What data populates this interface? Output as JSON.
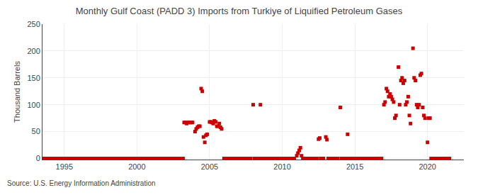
{
  "chart_data": {
    "type": "scatter",
    "title": "Monthly Gulf Coast (PADD 3) Imports from Turkiye of Liquified Petroleum Gases",
    "ylabel": "Thousand Barrels",
    "annotations": [
      "Source: U.S. Energy Information Administration"
    ],
    "color": "#cc0000",
    "marker": "square",
    "grid": true,
    "xlim": [
      1993.5,
      2022.5
    ],
    "ylim": [
      -2,
      250
    ],
    "xticks": [
      1995,
      2000,
      2005,
      2010,
      2015,
      2020
    ],
    "yticks": [
      0,
      50,
      100,
      150,
      200,
      250
    ],
    "x": [
      1993.5,
      1993.6,
      1993.7,
      1993.8,
      1993.9,
      1994.0,
      1994.1,
      1994.2,
      1994.3,
      1994.4,
      1994.5,
      1994.6,
      1994.7,
      1994.8,
      1994.9,
      1995.0,
      1995.1,
      1995.2,
      1995.3,
      1995.4,
      1995.5,
      1995.6,
      1995.7,
      1995.8,
      1995.9,
      1996.0,
      1996.1,
      1996.2,
      1996.3,
      1996.4,
      1996.5,
      1996.6,
      1996.7,
      1996.8,
      1996.9,
      1997.0,
      1997.1,
      1997.2,
      1997.3,
      1997.4,
      1997.5,
      1997.6,
      1997.7,
      1997.8,
      1997.9,
      1998.0,
      1998.1,
      1998.2,
      1998.3,
      1998.4,
      1998.5,
      1998.6,
      1998.7,
      1998.8,
      1998.9,
      1999.0,
      1999.1,
      1999.2,
      1999.3,
      1999.4,
      1999.5,
      1999.6,
      1999.7,
      1999.8,
      1999.9,
      2000.0,
      2000.1,
      2000.2,
      2000.3,
      2000.4,
      2000.5,
      2000.6,
      2000.7,
      2000.8,
      2000.9,
      2001.0,
      2001.1,
      2001.2,
      2001.3,
      2001.4,
      2001.5,
      2001.6,
      2001.7,
      2001.8,
      2001.9,
      2002.0,
      2002.1,
      2002.2,
      2002.3,
      2002.4,
      2002.5,
      2002.6,
      2002.7,
      2002.8,
      2002.9,
      2003.0,
      2003.08,
      2003.17,
      2003.25,
      2003.33,
      2003.42,
      2003.5,
      2003.58,
      2003.67,
      2003.75,
      2003.83,
      2004.0,
      2004.08,
      2004.17,
      2004.25,
      2004.33,
      2004.42,
      2004.5,
      2004.58,
      2004.67,
      2004.75,
      2004.83,
      2005.0,
      2005.08,
      2005.17,
      2005.25,
      2005.33,
      2005.42,
      2005.5,
      2005.58,
      2005.67,
      2005.75,
      2005.83,
      2006.0,
      2006.08,
      2006.17,
      2006.25,
      2006.33,
      2006.42,
      2006.5,
      2006.58,
      2006.67,
      2006.75,
      2006.83,
      2007.0,
      2007.08,
      2007.17,
      2007.25,
      2007.33,
      2007.42,
      2007.5,
      2007.58,
      2007.67,
      2007.75,
      2007.83,
      2008.0,
      2008.08,
      2008.17,
      2008.25,
      2008.33,
      2008.42,
      2008.5,
      2008.58,
      2008.67,
      2008.75,
      2008.83,
      2009.0,
      2009.08,
      2009.17,
      2009.25,
      2009.33,
      2009.42,
      2009.5,
      2009.58,
      2009.67,
      2009.75,
      2009.83,
      2010.0,
      2010.08,
      2010.17,
      2010.25,
      2010.33,
      2010.42,
      2010.5,
      2010.58,
      2010.67,
      2010.75,
      2010.83,
      2011.0,
      2011.08,
      2011.17,
      2011.25,
      2011.33,
      2011.42,
      2011.5,
      2011.58,
      2011.67,
      2011.75,
      2011.83,
      2012.0,
      2012.08,
      2012.17,
      2012.25,
      2012.33,
      2012.42,
      2012.5,
      2012.58,
      2012.67,
      2012.75,
      2012.83,
      2013.0,
      2013.08,
      2013.17,
      2013.25,
      2013.33,
      2013.42,
      2013.5,
      2013.58,
      2013.67,
      2013.75,
      2013.83,
      2014.0,
      2014.08,
      2014.17,
      2014.25,
      2014.33,
      2014.42,
      2014.5,
      2014.58,
      2014.67,
      2014.75,
      2014.83,
      2015.0,
      2015.08,
      2015.17,
      2015.25,
      2015.33,
      2015.42,
      2015.5,
      2015.58,
      2015.67,
      2015.75,
      2015.83,
      2016.0,
      2016.08,
      2016.17,
      2016.25,
      2016.33,
      2016.42,
      2016.5,
      2016.58,
      2016.67,
      2016.75,
      2016.83,
      2017.0,
      2017.08,
      2017.17,
      2017.25,
      2017.33,
      2017.42,
      2017.5,
      2017.58,
      2017.67,
      2017.75,
      2017.83,
      2018.0,
      2018.08,
      2018.17,
      2018.25,
      2018.33,
      2018.42,
      2018.5,
      2018.58,
      2018.67,
      2018.75,
      2018.83,
      2019.0,
      2019.08,
      2019.17,
      2019.25,
      2019.33,
      2019.42,
      2019.5,
      2019.58,
      2019.67,
      2019.75,
      2019.83,
      2020.0,
      2020.08,
      2020.17,
      2020.25,
      2020.33,
      2020.42,
      2020.5,
      2020.58,
      2020.67,
      2020.75,
      2020.83,
      2021.0,
      2021.08,
      2021.17,
      2021.25,
      2021.33,
      2021.42,
      2021.5
    ],
    "values": [
      0,
      0,
      0,
      0,
      0,
      0,
      0,
      0,
      0,
      0,
      0,
      0,
      0,
      0,
      0,
      0,
      0,
      0,
      0,
      0,
      0,
      0,
      0,
      0,
      0,
      0,
      0,
      0,
      0,
      0,
      0,
      0,
      0,
      0,
      0,
      0,
      0,
      0,
      0,
      0,
      0,
      0,
      0,
      0,
      0,
      0,
      0,
      0,
      0,
      0,
      0,
      0,
      0,
      0,
      0,
      0,
      0,
      0,
      0,
      0,
      0,
      0,
      0,
      0,
      0,
      0,
      0,
      0,
      0,
      0,
      0,
      0,
      0,
      0,
      0,
      0,
      0,
      0,
      0,
      0,
      0,
      0,
      0,
      0,
      0,
      0,
      0,
      0,
      0,
      0,
      0,
      0,
      0,
      0,
      0,
      0,
      0,
      0,
      67,
      67,
      65,
      67,
      67,
      67,
      67,
      67,
      50,
      55,
      58,
      60,
      60,
      130,
      125,
      40,
      30,
      43,
      45,
      68,
      68,
      67,
      65,
      70,
      68,
      60,
      60,
      65,
      58,
      55,
      0,
      0,
      0,
      0,
      0,
      0,
      0,
      0,
      0,
      0,
      0,
      0,
      0,
      0,
      0,
      0,
      0,
      0,
      0,
      0,
      0,
      0,
      100,
      0,
      0,
      0,
      0,
      0,
      100,
      0,
      0,
      0,
      0,
      0,
      0,
      0,
      0,
      0,
      0,
      0,
      0,
      0,
      0,
      0,
      0,
      0,
      0,
      0,
      0,
      0,
      0,
      0,
      0,
      0,
      0,
      5,
      10,
      15,
      20,
      5,
      0,
      0,
      0,
      0,
      0,
      0,
      0,
      0,
      0,
      0,
      0,
      0,
      36,
      38,
      0,
      0,
      0,
      40,
      35,
      0,
      0,
      0,
      0,
      0,
      0,
      0,
      0,
      0,
      95,
      0,
      0,
      0,
      0,
      0,
      45,
      0,
      0,
      0,
      0,
      0,
      0,
      0,
      0,
      0,
      0,
      0,
      0,
      0,
      0,
      0,
      0,
      0,
      0,
      0,
      0,
      0,
      0,
      0,
      0,
      0,
      0,
      100,
      105,
      130,
      125,
      115,
      120,
      115,
      110,
      105,
      75,
      80,
      170,
      100,
      145,
      150,
      140,
      145,
      100,
      105,
      115,
      80,
      65,
      205,
      150,
      145,
      100,
      95,
      100,
      155,
      158,
      95,
      80,
      75,
      30,
      75,
      75,
      0,
      0,
      0,
      0,
      0,
      0,
      0,
      0,
      0,
      0,
      0,
      0,
      0,
      0,
      0
    ]
  }
}
